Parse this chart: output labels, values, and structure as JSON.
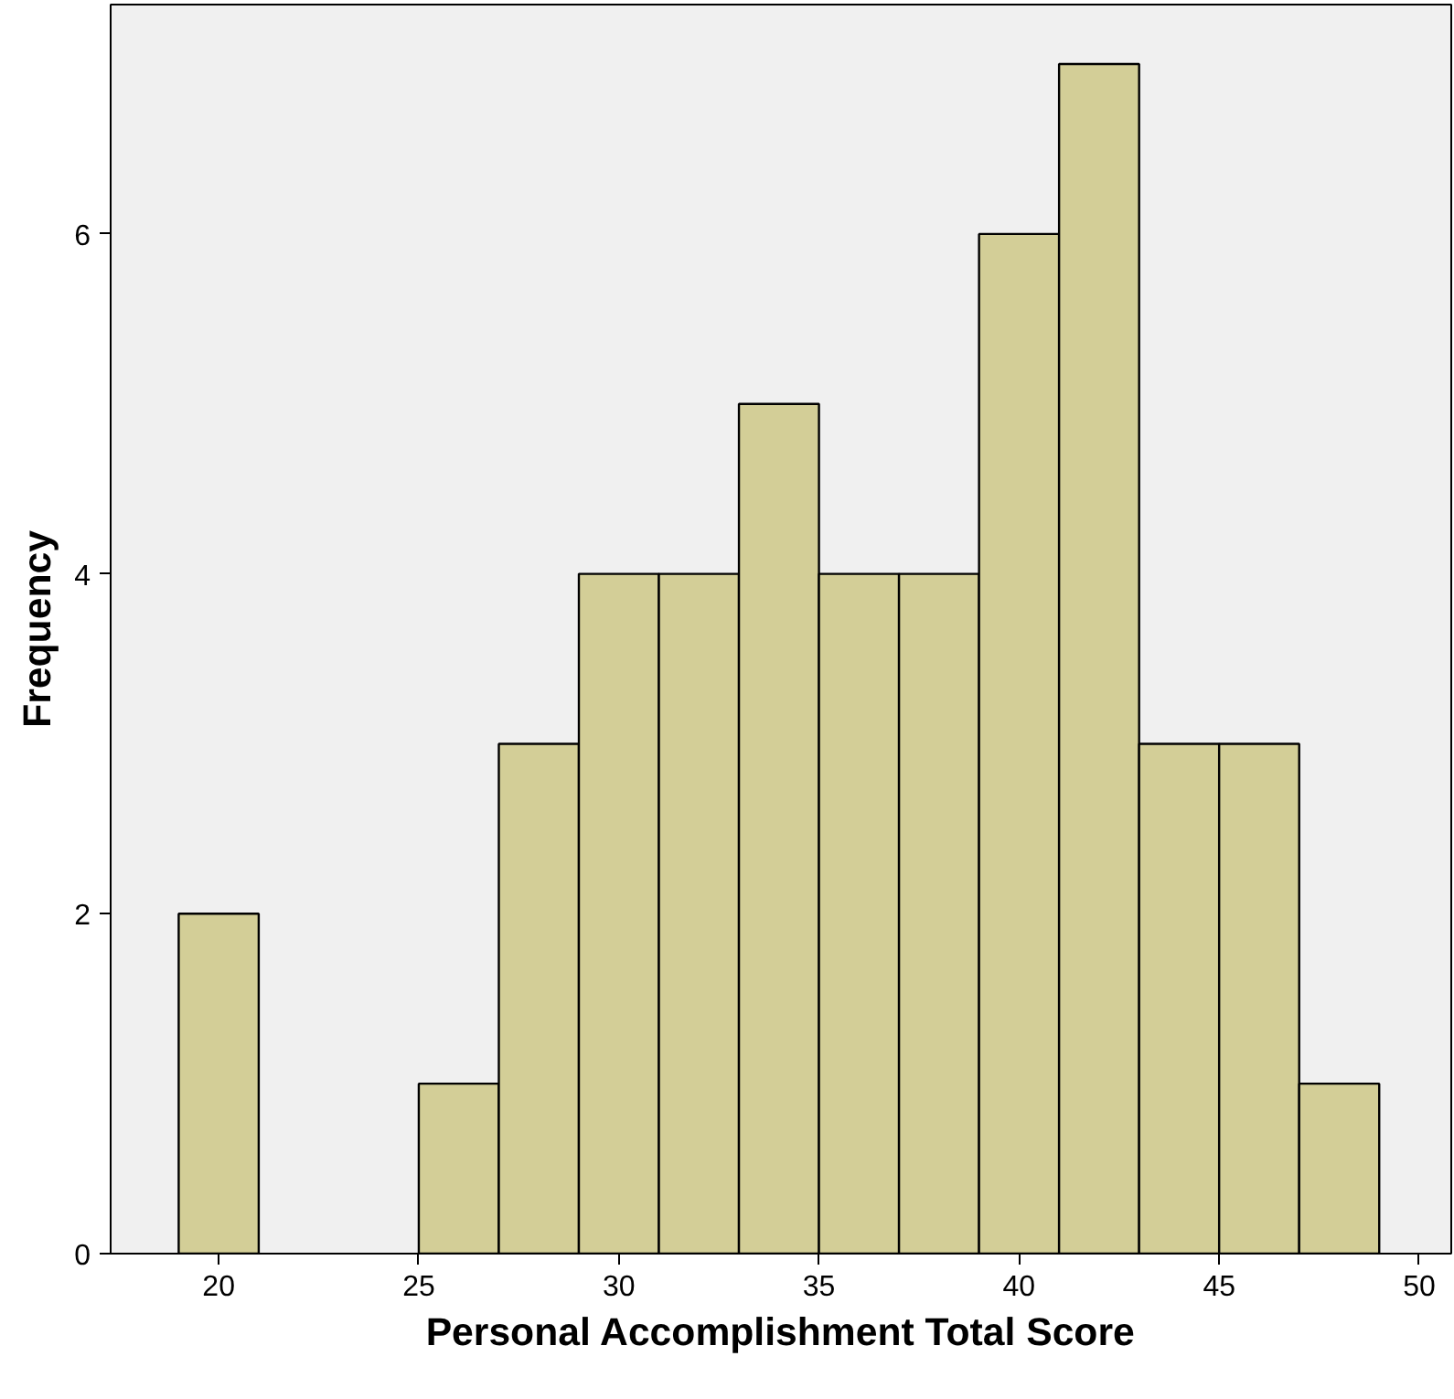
{
  "chart_data": {
    "type": "histogram",
    "xlabel": "Personal Accomplishment Total Score",
    "ylabel": "Frequency",
    "bins": [
      19,
      21,
      23,
      25,
      27,
      29,
      31,
      33,
      35,
      37,
      39,
      41,
      43,
      45,
      47,
      49
    ],
    "values": [
      2,
      0,
      0,
      1,
      3,
      4,
      4,
      5,
      4,
      4,
      6,
      7,
      3,
      3,
      1
    ],
    "color": "#d3ce97",
    "xlim": [
      17.3,
      50.8
    ],
    "xticks": [
      20,
      25,
      30,
      35,
      40,
      45,
      50
    ],
    "ylim": [
      0,
      7.35
    ],
    "yticks": [
      0,
      2,
      4,
      6
    ],
    "grid": false
  }
}
